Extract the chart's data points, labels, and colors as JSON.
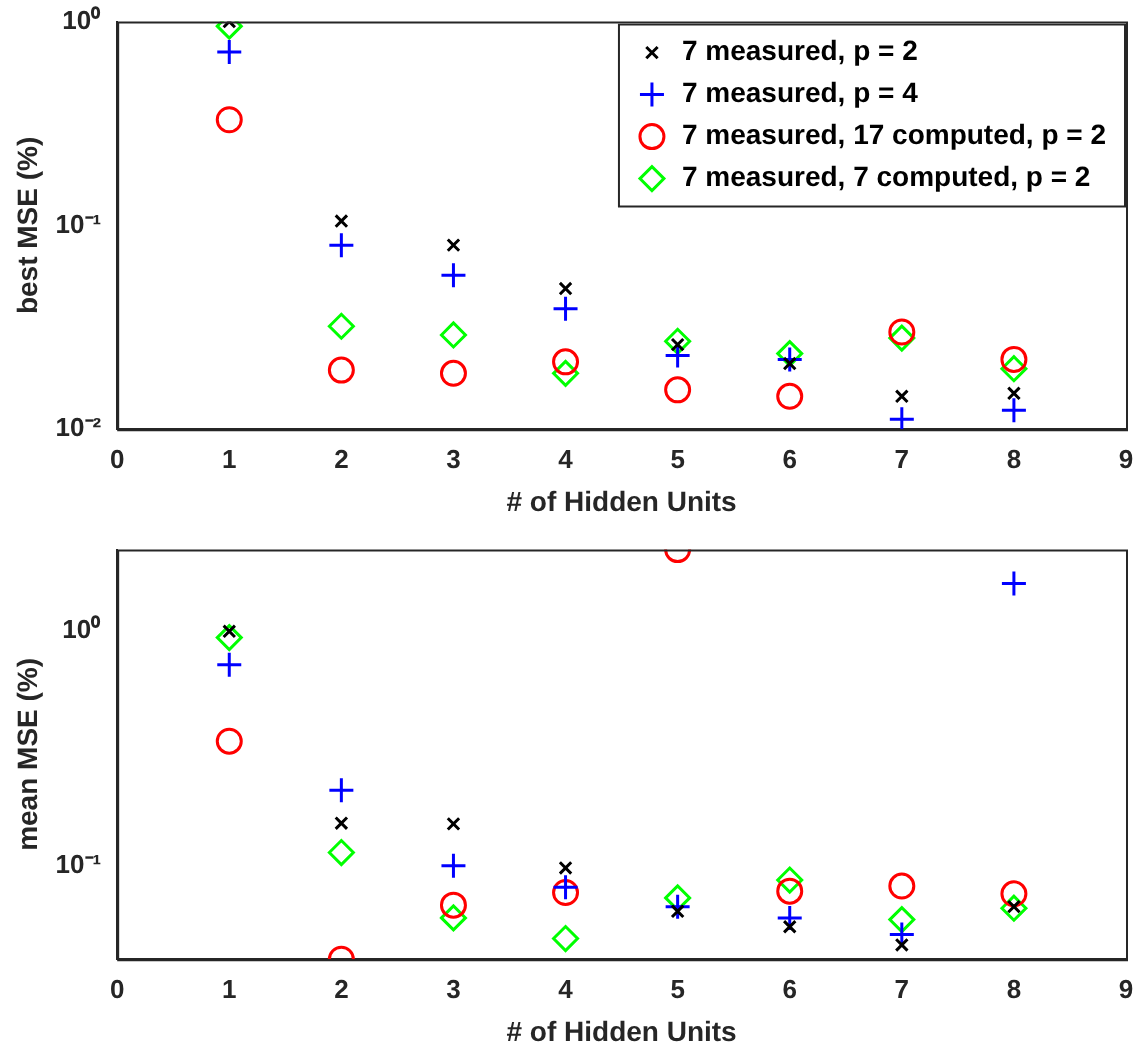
{
  "chart_data": [
    {
      "type": "scatter",
      "xlabel": "# of Hidden Units",
      "ylabel": "best MSE (%)",
      "log": "y",
      "grid": false,
      "legend": "top right",
      "x": [
        1,
        2,
        3,
        4,
        5,
        6,
        7,
        8
      ],
      "xlim": [
        0,
        9
      ],
      "xticks": [
        0,
        1,
        2,
        3,
        4,
        5,
        6,
        7,
        8,
        9
      ],
      "ylim": [
        0.01,
        1
      ],
      "yticks": [
        {
          "value": 0.01,
          "label": "10⁻²"
        },
        {
          "value": 0.1,
          "label": "10⁻¹"
        },
        {
          "value": 1,
          "label": "10⁰"
        }
      ],
      "series": [
        {
          "name": "7 measured, p = 2",
          "color": "#000000",
          "marker": "x",
          "values": [
            1.0,
            0.105,
            0.08,
            0.049,
            0.026,
            0.021,
            0.0145,
            0.015
          ]
        },
        {
          "name": "7 measured, p = 4",
          "color": "#0000ff",
          "marker": "cross",
          "values": [
            0.71,
            0.08,
            0.057,
            0.039,
            0.023,
            0.022,
            0.0112,
            0.0124
          ]
        },
        {
          "name": "7 measured, 17 computed, p = 2",
          "color": "#ff0000",
          "marker": "circle",
          "values": [
            0.33,
            0.0195,
            0.0188,
            0.0214,
            0.0156,
            0.0145,
            0.03,
            0.022
          ]
        },
        {
          "name": "7 measured, 7 computed, p = 2",
          "color": "#00ff00",
          "marker": "diamond",
          "values": [
            0.95,
            0.032,
            0.029,
            0.0188,
            0.027,
            0.0235,
            0.028,
            0.0198
          ]
        }
      ]
    },
    {
      "type": "scatter",
      "xlabel": "# of Hidden Units",
      "ylabel": "mean MSE (%)",
      "log": "y",
      "grid": false,
      "x": [
        1,
        2,
        3,
        4,
        5,
        6,
        7,
        8
      ],
      "xlim": [
        0,
        9
      ],
      "xticks": [
        0,
        1,
        2,
        3,
        4,
        5,
        6,
        7,
        8,
        9
      ],
      "ylim": [
        0.04,
        2.23
      ],
      "yticks": [
        {
          "value": 0.1,
          "label": "10⁻¹"
        },
        {
          "value": 1,
          "label": "10⁰"
        }
      ],
      "series": [
        {
          "color": "#000000",
          "marker": "x",
          "values": [
            1.0,
            0.152,
            0.151,
            0.098,
            0.064,
            0.055,
            0.046,
            0.067
          ]
        },
        {
          "color": "#0000ff",
          "marker": "cross",
          "values": [
            0.72,
            0.21,
            0.1,
            0.081,
            0.067,
            0.06,
            0.051,
            1.6
          ]
        },
        {
          "color": "#ff0000",
          "marker": "circle",
          "values": [
            0.34,
            0.04,
            0.068,
            0.077,
            2.23,
            0.078,
            0.082,
            0.076
          ]
        },
        {
          "color": "#00ff00",
          "marker": "diamond",
          "values": [
            0.94,
            0.114,
            0.06,
            0.049,
            0.073,
            0.087,
            0.059,
            0.066
          ]
        }
      ]
    }
  ]
}
